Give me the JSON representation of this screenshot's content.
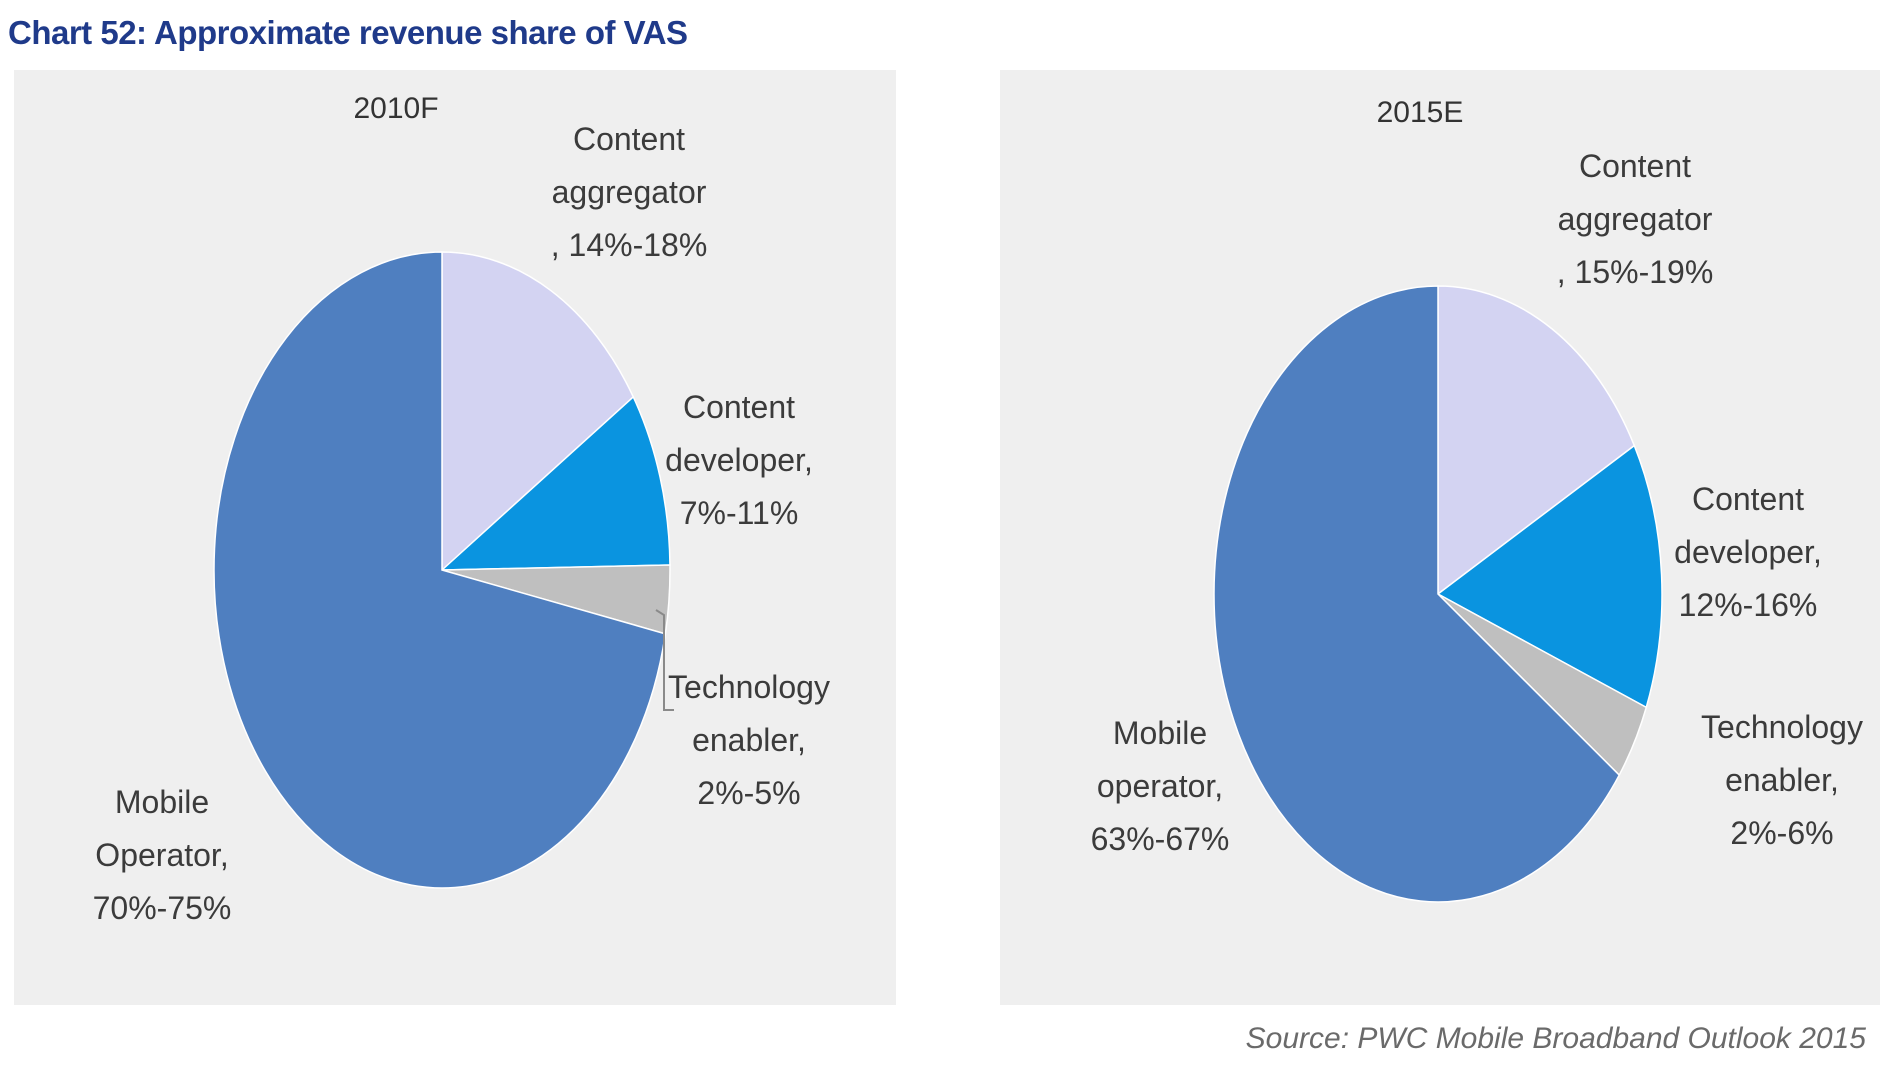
{
  "title": "Chart 52: Approximate revenue share of VAS",
  "source": "Source: PWC Mobile Broadband Outlook 2015",
  "colors": {
    "mobile_operator": "#4f7fc0",
    "content_aggregator": "#d3d3f2",
    "content_developer": "#0a94e0",
    "technology_enabler": "#bfbfbf",
    "panel_background": "#efefef",
    "title": "#1f3a8a"
  },
  "chart_data": [
    {
      "type": "pie",
      "title": "2010F",
      "slices": [
        {
          "label": [
            "Content",
            "aggregator",
            ", 14%-18%"
          ],
          "value": 16,
          "color": "#d3d3f2"
        },
        {
          "label": [
            "Content",
            "developer,",
            "7%-11%"
          ],
          "value": 9,
          "color": "#0a94e0"
        },
        {
          "label": [
            "Technology",
            "enabler,",
            "2%-5%"
          ],
          "value": 3.5,
          "color": "#bfbfbf"
        },
        {
          "label": [
            "Mobile",
            "Operator,",
            "70%-75%"
          ],
          "value": 72.5,
          "color": "#4f7fc0"
        }
      ]
    },
    {
      "type": "pie",
      "title": "2015E",
      "slices": [
        {
          "label": [
            "Content",
            "aggregator",
            ", 15%-19%"
          ],
          "value": 17,
          "color": "#d3d3f2"
        },
        {
          "label": [
            "Content",
            "developer,",
            "12%-16%"
          ],
          "value": 14,
          "color": "#0a94e0"
        },
        {
          "label": [
            "Technology",
            "enabler,",
            "2%-6%"
          ],
          "value": 4,
          "color": "#bfbfbf"
        },
        {
          "label": [
            "Mobile",
            "operator,",
            "63%-67%"
          ],
          "value": 65,
          "color": "#4f7fc0"
        }
      ]
    }
  ]
}
